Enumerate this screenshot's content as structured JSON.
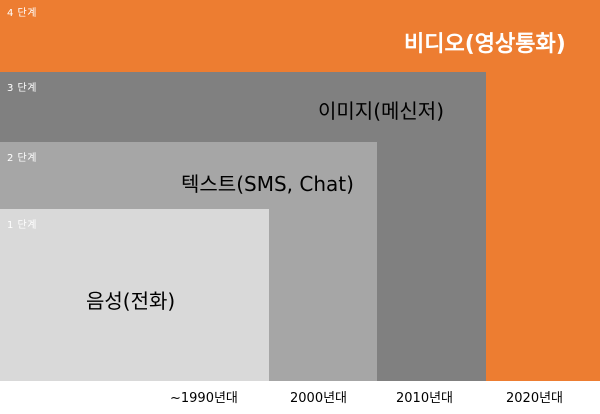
{
  "stages": [
    {
      "step": "4 단계",
      "medium": "비디오(영상통화)",
      "color": "#ed7d31"
    },
    {
      "step": "3 단계",
      "medium": "이미지(메신저)",
      "color": "#808080"
    },
    {
      "step": "2 단계",
      "medium": "텍스트(SMS, Chat)",
      "color": "#a6a6a6"
    },
    {
      "step": "1 단계",
      "medium": "음성(전화)",
      "color": "#d9d9d9"
    }
  ],
  "eras": [
    "~1990년대",
    "2000년대",
    "2010년대",
    "2020년대"
  ]
}
